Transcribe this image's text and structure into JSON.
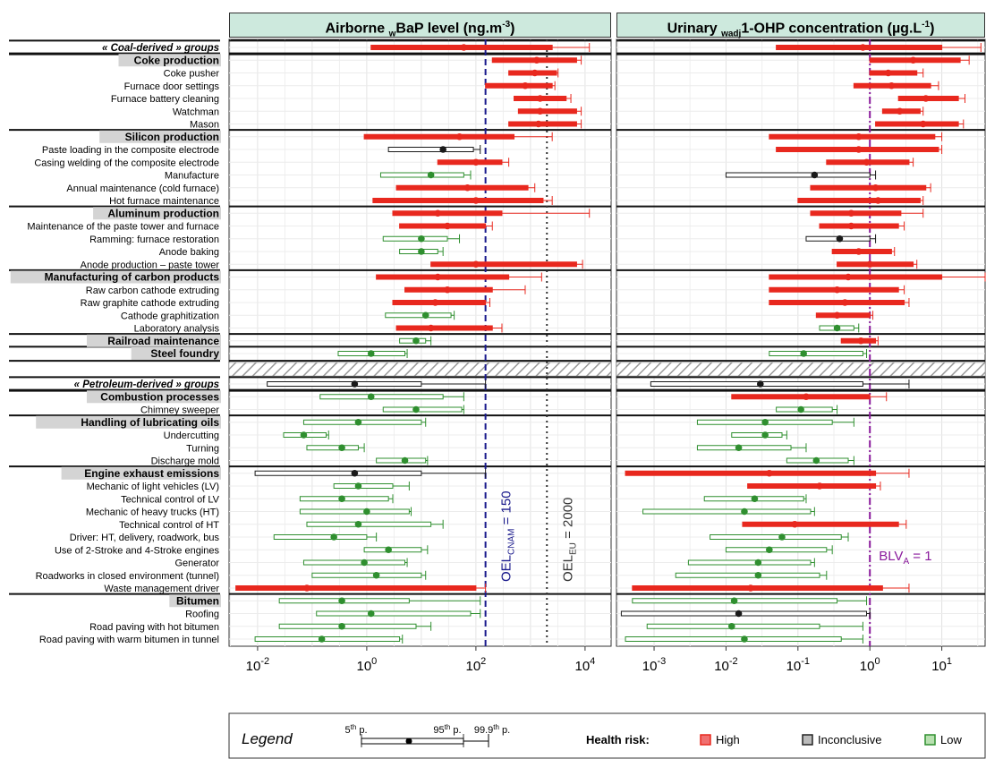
{
  "chart_data": {
    "type": "range-dot",
    "panels": [
      {
        "title": "Airborne",
        "sub": "w",
        "title_mid": "BaP level (ng.m",
        "sup": "-3",
        "title_end": ")",
        "scale": "log",
        "ticks": [
          {
            "v": 0.01,
            "base": "10",
            "exp": "-2"
          },
          {
            "v": 1,
            "base": "10",
            "exp": "0"
          },
          {
            "v": 100,
            "base": "10",
            "exp": "2"
          },
          {
            "v": 10000,
            "base": "10",
            "exp": "4"
          }
        ],
        "xlim": [
          0.003,
          30000
        ]
      },
      {
        "title": "Urinary",
        "sub": "wadj",
        "title_mid": "1-OHP concentration (µg.L",
        "sup": "-1",
        "title_end": ")",
        "scale": "log",
        "ticks": [
          {
            "v": 0.001,
            "base": "10",
            "exp": "-3"
          },
          {
            "v": 0.01,
            "base": "10",
            "exp": "-2"
          },
          {
            "v": 0.1,
            "base": "10",
            "exp": "-1"
          },
          {
            "v": 1,
            "base": "10",
            "exp": "0"
          },
          {
            "v": 10,
            "base": "10",
            "exp": "1"
          }
        ],
        "xlim": [
          0.0003,
          40
        ]
      }
    ],
    "reference_lines": {
      "oel_cnam": {
        "label_main": "OEL",
        "label_sub": "CNAM",
        "label_val": " = 150",
        "value": 150,
        "color": "#1a1a8c"
      },
      "oel_eu": {
        "label_main": "OEL",
        "label_sub": "EU",
        "label_val": " = 2000",
        "value": 2000,
        "color": "#333333"
      },
      "blv": {
        "label_main": "BLV",
        "label_sub": "A",
        "label_val": " = 1",
        "value": 1,
        "color": "#8a1a9c"
      }
    },
    "rows": [
      {
        "label": "« Coal-derived » groups",
        "kind": "main",
        "a": {
          "p5": 1.2,
          "med": 60,
          "p95": 2500,
          "p99": 12000,
          "risk": "High"
        },
        "b": {
          "p5": 0.05,
          "med": 0.8,
          "p95": 10,
          "p99": 35,
          "risk": "High"
        }
      },
      {
        "label": "Coke production",
        "kind": "header",
        "a": {
          "p5": 200,
          "med": 1300,
          "p95": 7000,
          "p99": 8500,
          "risk": "High"
        },
        "b": {
          "p5": 1.0,
          "med": 4,
          "p95": 18,
          "p99": 24,
          "risk": "High"
        }
      },
      {
        "label": "Coke pusher",
        "kind": "sub",
        "a": {
          "p5": 400,
          "med": 1200,
          "p95": 3000,
          "p99": 3200,
          "risk": "High"
        },
        "b": {
          "p5": 1.0,
          "med": 1.8,
          "p95": 4.5,
          "p99": 5.5,
          "risk": "High"
        }
      },
      {
        "label": "Furnace door settings",
        "kind": "sub",
        "a": {
          "p5": 150,
          "med": 800,
          "p95": 2500,
          "p99": 2800,
          "risk": "High"
        },
        "b": {
          "p5": 0.6,
          "med": 2,
          "p95": 7,
          "p99": 9,
          "risk": "High"
        }
      },
      {
        "label": "Furnace battery cleaning",
        "kind": "sub",
        "a": {
          "p5": 500,
          "med": 1500,
          "p95": 4500,
          "p99": 5500,
          "risk": "High"
        },
        "b": {
          "p5": 2.5,
          "med": 6,
          "p95": 17,
          "p99": 21,
          "risk": "High"
        }
      },
      {
        "label": "Watchman",
        "kind": "sub",
        "a": {
          "p5": 600,
          "med": 1500,
          "p95": 7000,
          "p99": 8500,
          "risk": "High"
        },
        "b": {
          "p5": 1.5,
          "med": 2.6,
          "p95": 5,
          "p99": 5.5,
          "risk": "High"
        }
      },
      {
        "label": "Mason",
        "kind": "sub",
        "a": {
          "p5": 400,
          "med": 1400,
          "p95": 7000,
          "p99": 8500,
          "risk": "High"
        },
        "b": {
          "p5": 1.2,
          "med": 5.5,
          "p95": 17,
          "p99": 20,
          "risk": "High"
        }
      },
      {
        "label": "Silicon production",
        "kind": "header",
        "a": {
          "p5": 0.9,
          "med": 50,
          "p95": 500,
          "p99": 2500,
          "risk": "High"
        },
        "b": {
          "p5": 0.04,
          "med": 0.7,
          "p95": 8,
          "p99": 10,
          "risk": "High"
        }
      },
      {
        "label": "Paste loading in the composite electrode",
        "kind": "sub",
        "a": {
          "p5": 2.5,
          "med": 25,
          "p95": 90,
          "p99": 120,
          "risk": "Inconclusive"
        },
        "b": {
          "p5": 0.05,
          "med": 0.7,
          "p95": 9,
          "p99": 10,
          "risk": "High"
        }
      },
      {
        "label": "Casing welding of the composite electrode",
        "kind": "sub",
        "a": {
          "p5": 20,
          "med": 100,
          "p95": 300,
          "p99": 400,
          "risk": "High"
        },
        "b": {
          "p5": 0.25,
          "med": 0.9,
          "p95": 3.5,
          "p99": 4,
          "risk": "High"
        }
      },
      {
        "label": "Manufacture",
        "kind": "sub",
        "a": {
          "p5": 1.8,
          "med": 15,
          "p95": 60,
          "p99": 80,
          "risk": "Low"
        },
        "b": {
          "p5": 0.01,
          "med": 0.17,
          "p95": 1.0,
          "p99": 1.2,
          "risk": "Inconclusive"
        }
      },
      {
        "label": "Annual maintenance (cold furnace)",
        "kind": "sub",
        "a": {
          "p5": 3.5,
          "med": 70,
          "p95": 900,
          "p99": 1200,
          "risk": "High"
        },
        "b": {
          "p5": 0.15,
          "med": 1.2,
          "p95": 6,
          "p99": 7,
          "risk": "High"
        }
      },
      {
        "label": "Hot furnace maintenance",
        "kind": "sub",
        "a": {
          "p5": 1.3,
          "med": 100,
          "p95": 1700,
          "p99": 2500,
          "risk": "High"
        },
        "b": {
          "p5": 0.1,
          "med": 1.3,
          "p95": 5,
          "p99": 5.5,
          "risk": "High"
        }
      },
      {
        "label": "Aluminum production",
        "kind": "header",
        "a": {
          "p5": 3,
          "med": 20,
          "p95": 300,
          "p99": 12000,
          "risk": "High"
        },
        "b": {
          "p5": 0.15,
          "med": 0.55,
          "p95": 2.7,
          "p99": 5.5,
          "risk": "High"
        }
      },
      {
        "label": "Maintenance of the paste tower and furnace",
        "kind": "sub",
        "a": {
          "p5": 4,
          "med": 30,
          "p95": 150,
          "p99": 200,
          "risk": "High"
        },
        "b": {
          "p5": 0.2,
          "med": 0.55,
          "p95": 2.5,
          "p99": 3,
          "risk": "High"
        }
      },
      {
        "label": "Ramming: furnace restoration",
        "kind": "sub",
        "a": {
          "p5": 2,
          "med": 10,
          "p95": 30,
          "p99": 50,
          "risk": "Low"
        },
        "b": {
          "p5": 0.13,
          "med": 0.38,
          "p95": 1.0,
          "p99": 1.2,
          "risk": "Inconclusive"
        }
      },
      {
        "label": "Anode baking",
        "kind": "sub",
        "a": {
          "p5": 4,
          "med": 10,
          "p95": 20,
          "p99": 25,
          "risk": "Low"
        },
        "b": {
          "p5": 0.3,
          "med": 0.7,
          "p95": 2,
          "p99": 2.2,
          "risk": "High"
        }
      },
      {
        "label": "Anode production – paste tower",
        "kind": "sub",
        "a": {
          "p5": 15,
          "med": 100,
          "p95": 7000,
          "p99": 9000,
          "risk": "High"
        },
        "b": {
          "p5": 0.35,
          "med": 1.0,
          "p95": 4,
          "p99": 4.5,
          "risk": "High"
        }
      },
      {
        "label": "Manufacturing of carbon products",
        "kind": "header",
        "a": {
          "p5": 1.5,
          "med": 20,
          "p95": 400,
          "p99": 1600,
          "risk": "High"
        },
        "b": {
          "p5": 0.04,
          "med": 0.5,
          "p95": 10,
          "p99": 40,
          "risk": "High"
        }
      },
      {
        "label": "Raw carbon cathode extruding",
        "kind": "sub",
        "a": {
          "p5": 5,
          "med": 30,
          "p95": 200,
          "p99": 800,
          "risk": "High"
        },
        "b": {
          "p5": 0.04,
          "med": 0.35,
          "p95": 2.5,
          "p99": 3,
          "risk": "High"
        }
      },
      {
        "label": "Raw graphite cathode extruding",
        "kind": "sub",
        "a": {
          "p5": 3,
          "med": 18,
          "p95": 150,
          "p99": 180,
          "risk": "High"
        },
        "b": {
          "p5": 0.04,
          "med": 0.45,
          "p95": 3,
          "p99": 3.5,
          "risk": "High"
        }
      },
      {
        "label": "Cathode graphitization",
        "kind": "sub",
        "a": {
          "p5": 2.2,
          "med": 12,
          "p95": 35,
          "p99": 40,
          "risk": "Low"
        },
        "b": {
          "p5": 0.18,
          "med": 0.35,
          "p95": 1.0,
          "p99": 1.1,
          "risk": "High"
        }
      },
      {
        "label": "Laboratory analysis",
        "kind": "sub",
        "a": {
          "p5": 3.5,
          "med": 15,
          "p95": 200,
          "p99": 300,
          "risk": "High"
        },
        "b": {
          "p5": 0.2,
          "med": 0.35,
          "p95": 0.6,
          "p99": 0.7,
          "risk": "Low"
        }
      },
      {
        "label": "Railroad maintenance",
        "kind": "header",
        "a": {
          "p5": 4,
          "med": 8,
          "p95": 12,
          "p99": 15,
          "risk": "Low"
        },
        "b": {
          "p5": 0.4,
          "med": 0.75,
          "p95": 1.2,
          "p99": 1.3,
          "risk": "High"
        }
      },
      {
        "label": "Steel foundry",
        "kind": "header",
        "a": {
          "p5": 0.3,
          "med": 1.2,
          "p95": 5,
          "p99": 5.5,
          "risk": "Low"
        },
        "b": {
          "p5": 0.04,
          "med": 0.12,
          "p95": 0.8,
          "p99": 0.9,
          "risk": "Low"
        }
      },
      {
        "label": "« Petroleum-derived » groups",
        "kind": "main",
        "a": {
          "p5": 0.015,
          "med": 0.6,
          "p95": 10,
          "p99": 150,
          "risk": "Inconclusive"
        },
        "b": {
          "p5": 0.0009,
          "med": 0.03,
          "p95": 0.8,
          "p99": 3.5,
          "risk": "Inconclusive"
        }
      },
      {
        "label": "Combustion processes",
        "kind": "header",
        "a": {
          "p5": 0.14,
          "med": 1.2,
          "p95": 25,
          "p99": 60,
          "risk": "Low"
        },
        "b": {
          "p5": 0.012,
          "med": 0.13,
          "p95": 1.0,
          "p99": 1.7,
          "risk": "High"
        }
      },
      {
        "label": "Chimney sweeper",
        "kind": "sub",
        "a": {
          "p5": 2,
          "med": 8,
          "p95": 55,
          "p99": 60,
          "risk": "Low"
        },
        "b": {
          "p5": 0.05,
          "med": 0.11,
          "p95": 0.3,
          "p99": 0.35,
          "risk": "Low"
        }
      },
      {
        "label": "Handling of lubricating oils",
        "kind": "header",
        "a": {
          "p5": 0.07,
          "med": 0.7,
          "p95": 10,
          "p99": 12,
          "risk": "Low"
        },
        "b": {
          "p5": 0.004,
          "med": 0.035,
          "p95": 0.3,
          "p99": 0.6,
          "risk": "Low"
        }
      },
      {
        "label": "Undercutting",
        "kind": "sub",
        "a": {
          "p5": 0.03,
          "med": 0.07,
          "p95": 0.18,
          "p99": 0.2,
          "risk": "Low"
        },
        "b": {
          "p5": 0.012,
          "med": 0.035,
          "p95": 0.06,
          "p99": 0.07,
          "risk": "Low"
        }
      },
      {
        "label": "Turning",
        "kind": "sub",
        "a": {
          "p5": 0.08,
          "med": 0.35,
          "p95": 0.7,
          "p99": 0.9,
          "risk": "Low"
        },
        "b": {
          "p5": 0.004,
          "med": 0.015,
          "p95": 0.08,
          "p99": 0.13,
          "risk": "Low"
        }
      },
      {
        "label": "Discharge mold",
        "kind": "sub",
        "a": {
          "p5": 1.5,
          "med": 5,
          "p95": 12,
          "p99": 13,
          "risk": "Low"
        },
        "b": {
          "p5": 0.07,
          "med": 0.18,
          "p95": 0.5,
          "p99": 0.6,
          "risk": "Low"
        }
      },
      {
        "label": "Engine exhaust emissions",
        "kind": "header",
        "a": {
          "p5": 0.009,
          "med": 0.6,
          "p95": 10,
          "p99": 150,
          "risk": "Inconclusive"
        },
        "b": {
          "p5": 0.0004,
          "med": 0.04,
          "p95": 1.2,
          "p99": 3.5,
          "risk": "High"
        }
      },
      {
        "label": "Mechanic of light vehicles (LV)",
        "kind": "sub",
        "a": {
          "p5": 0.25,
          "med": 0.7,
          "p95": 3,
          "p99": 6,
          "risk": "Low"
        },
        "b": {
          "p5": 0.02,
          "med": 0.2,
          "p95": 1.2,
          "p99": 1.4,
          "risk": "High"
        }
      },
      {
        "label": "Technical control of LV",
        "kind": "sub",
        "a": {
          "p5": 0.06,
          "med": 0.35,
          "p95": 2.5,
          "p99": 3,
          "risk": "Low"
        },
        "b": {
          "p5": 0.005,
          "med": 0.025,
          "p95": 0.12,
          "p99": 0.13,
          "risk": "Low"
        }
      },
      {
        "label": "Mechanic of heavy trucks (HT)",
        "kind": "sub",
        "a": {
          "p5": 0.06,
          "med": 1,
          "p95": 6,
          "p99": 6.5,
          "risk": "Low"
        },
        "b": {
          "p5": 0.0007,
          "med": 0.018,
          "p95": 0.15,
          "p99": 0.17,
          "risk": "Low"
        }
      },
      {
        "label": "Technical control of HT",
        "kind": "sub",
        "a": {
          "p5": 0.08,
          "med": 0.7,
          "p95": 15,
          "p99": 25,
          "risk": "Low"
        },
        "b": {
          "p5": 0.017,
          "med": 0.09,
          "p95": 2.5,
          "p99": 3.2,
          "risk": "High"
        }
      },
      {
        "label": "Driver: HT, delivery, roadwork, bus",
        "kind": "sub",
        "a": {
          "p5": 0.02,
          "med": 0.25,
          "p95": 1,
          "p99": 1.5,
          "risk": "Low"
        },
        "b": {
          "p5": 0.006,
          "med": 0.06,
          "p95": 0.4,
          "p99": 0.5,
          "risk": "Low"
        }
      },
      {
        "label": "Use of 2-Stroke and 4-Stroke engines",
        "kind": "sub",
        "a": {
          "p5": 0.9,
          "med": 2.5,
          "p95": 10,
          "p99": 13,
          "risk": "Low"
        },
        "b": {
          "p5": 0.01,
          "med": 0.04,
          "p95": 0.25,
          "p99": 0.3,
          "risk": "Low"
        }
      },
      {
        "label": "Generator",
        "kind": "sub",
        "a": {
          "p5": 0.07,
          "med": 0.9,
          "p95": 5,
          "p99": 5.5,
          "risk": "Low"
        },
        "b": {
          "p5": 0.003,
          "med": 0.028,
          "p95": 0.15,
          "p99": 0.17,
          "risk": "Low"
        }
      },
      {
        "label": "Roadworks in closed environment (tunnel)",
        "kind": "sub",
        "a": {
          "p5": 0.1,
          "med": 1.5,
          "p95": 10,
          "p99": 12,
          "risk": "Low"
        },
        "b": {
          "p5": 0.002,
          "med": 0.028,
          "p95": 0.2,
          "p99": 0.25,
          "risk": "Low"
        }
      },
      {
        "label": "Waste management driver",
        "kind": "sub",
        "a": {
          "p5": 0.004,
          "med": 0.08,
          "p95": 100,
          "p99": 150,
          "risk": "High"
        },
        "b": {
          "p5": 0.0005,
          "med": 0.022,
          "p95": 1.5,
          "p99": 3.5,
          "risk": "High"
        }
      },
      {
        "label": "Bitumen",
        "kind": "header",
        "a": {
          "p5": 0.025,
          "med": 0.35,
          "p95": 6,
          "p99": 120,
          "risk": "Low"
        },
        "b": {
          "p5": 0.0005,
          "med": 0.013,
          "p95": 0.35,
          "p99": 0.9,
          "risk": "Low"
        }
      },
      {
        "label": "Roofing",
        "kind": "sub",
        "a": {
          "p5": 0.12,
          "med": 1.2,
          "p95": 80,
          "p99": 120,
          "risk": "Low"
        },
        "b": {
          "p5": 0.00035,
          "med": 0.015,
          "p95": 0.9,
          "p99": 1.0,
          "risk": "Inconclusive"
        }
      },
      {
        "label": "Road paving with hot bitumen",
        "kind": "sub",
        "a": {
          "p5": 0.025,
          "med": 0.35,
          "p95": 8,
          "p99": 15,
          "risk": "Low"
        },
        "b": {
          "p5": 0.0008,
          "med": 0.012,
          "p95": 0.2,
          "p99": 0.8,
          "risk": "Low"
        }
      },
      {
        "label": "Road paving with warm bitumen in tunnel",
        "kind": "sub",
        "a": {
          "p5": 0.009,
          "med": 0.15,
          "p95": 4,
          "p99": 4.5,
          "risk": "Low"
        },
        "b": {
          "p5": 0.0004,
          "med": 0.018,
          "p95": 0.4,
          "p99": 0.8,
          "risk": "Low"
        }
      }
    ],
    "legend": {
      "title": "Legend",
      "p5": "5",
      "p5_sup": "th",
      "p5_suffix": " p.",
      "p95": "95",
      "p95_sup": "th",
      "p95_suffix": " p.",
      "p99": "99.9",
      "p99_sup": "th",
      "p99_suffix": " p.",
      "risk_label": "Health risk:",
      "risk_items": [
        {
          "name": "High",
          "color": "#e8281e",
          "fill": "#f07070"
        },
        {
          "name": "Inconclusive",
          "color": "#222222",
          "fill": "#bbbbbb"
        },
        {
          "name": "Low",
          "color": "#2f8f2f",
          "fill": "#b8e0b0"
        }
      ]
    },
    "risk_colors": {
      "High": "#e8281e",
      "Inconclusive": "#1a1a1a",
      "Low": "#2f8f2f"
    },
    "grid": true
  }
}
